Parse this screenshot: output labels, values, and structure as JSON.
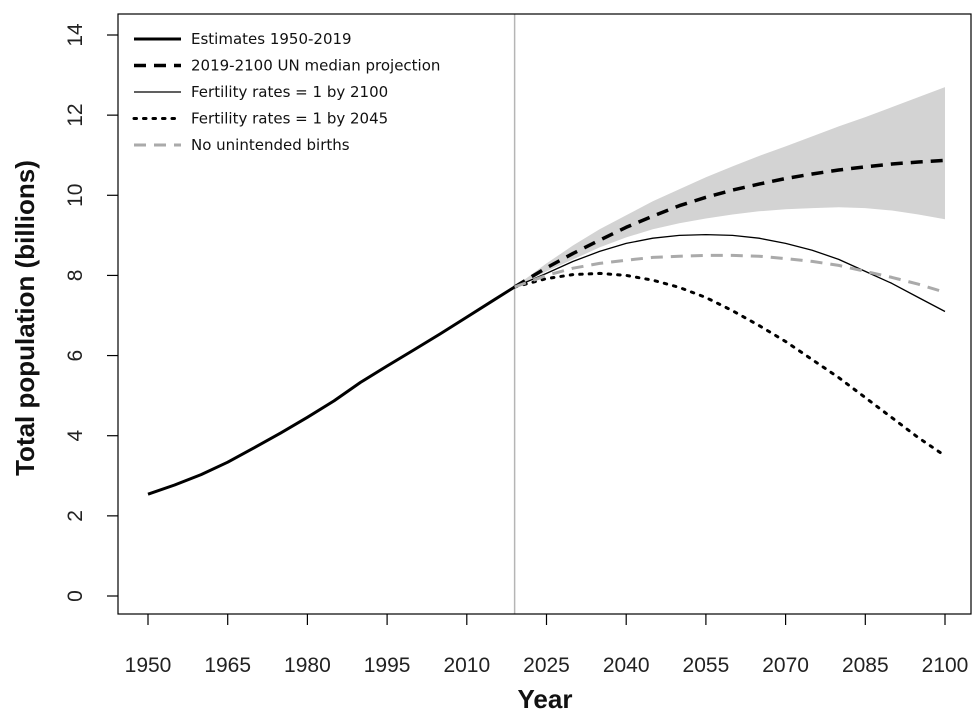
{
  "chart_data": {
    "type": "line",
    "xlabel": "Year",
    "ylabel": "Total population (billions)",
    "xlim": [
      1950,
      2100
    ],
    "ylim": [
      0,
      14
    ],
    "x_ticks": [
      1950,
      1965,
      1980,
      1995,
      2010,
      2025,
      2040,
      2055,
      2070,
      2085,
      2100
    ],
    "y_ticks": [
      0,
      2,
      4,
      6,
      8,
      10,
      12,
      14
    ],
    "divider_year": 2019,
    "grid": false,
    "legend_position": "top-left",
    "series": [
      {
        "name": "Estimates 1950-2019",
        "style": "solid-thick",
        "color": "#000000",
        "x": [
          1950,
          1955,
          1960,
          1965,
          1970,
          1975,
          1980,
          1985,
          1990,
          1995,
          2000,
          2005,
          2010,
          2015,
          2019
        ],
        "y": [
          2.54,
          2.77,
          3.03,
          3.34,
          3.7,
          4.07,
          4.46,
          4.87,
          5.33,
          5.74,
          6.14,
          6.54,
          6.96,
          7.38,
          7.71
        ]
      },
      {
        "name": "2019-2100 UN median projection",
        "style": "dashed-thick",
        "color": "#000000",
        "x": [
          2019,
          2025,
          2030,
          2035,
          2040,
          2045,
          2050,
          2055,
          2060,
          2065,
          2070,
          2075,
          2080,
          2085,
          2090,
          2095,
          2100
        ],
        "y": [
          7.71,
          8.19,
          8.55,
          8.88,
          9.2,
          9.48,
          9.74,
          9.95,
          10.13,
          10.28,
          10.42,
          10.53,
          10.63,
          10.71,
          10.78,
          10.83,
          10.87
        ]
      },
      {
        "name": "Fertility rates = 1 by 2100",
        "style": "solid-thin",
        "color": "#000000",
        "x": [
          2019,
          2025,
          2030,
          2035,
          2040,
          2045,
          2050,
          2055,
          2060,
          2065,
          2070,
          2075,
          2080,
          2085,
          2090,
          2095,
          2100
        ],
        "y": [
          7.71,
          8.05,
          8.35,
          8.6,
          8.8,
          8.93,
          9.0,
          9.02,
          9.0,
          8.93,
          8.8,
          8.63,
          8.4,
          8.1,
          7.8,
          7.45,
          7.1
        ]
      },
      {
        "name": "Fertility rates = 1 by 2045",
        "style": "dotted",
        "color": "#000000",
        "x": [
          2019,
          2025,
          2030,
          2035,
          2040,
          2045,
          2050,
          2055,
          2060,
          2065,
          2070,
          2075,
          2080,
          2085,
          2090,
          2095,
          2100
        ],
        "y": [
          7.71,
          7.92,
          8.02,
          8.05,
          8.0,
          7.88,
          7.7,
          7.45,
          7.12,
          6.75,
          6.35,
          5.9,
          5.45,
          4.95,
          4.45,
          3.95,
          3.5
        ]
      },
      {
        "name": "No unintended births",
        "style": "dashed-grey",
        "color": "#aaaaaa",
        "x": [
          2019,
          2025,
          2030,
          2035,
          2040,
          2045,
          2050,
          2055,
          2060,
          2065,
          2070,
          2075,
          2080,
          2085,
          2090,
          2095,
          2100
        ],
        "y": [
          7.71,
          8.0,
          8.18,
          8.3,
          8.38,
          8.45,
          8.48,
          8.5,
          8.5,
          8.48,
          8.42,
          8.35,
          8.25,
          8.1,
          7.95,
          7.78,
          7.58
        ]
      }
    ],
    "uncertainty_band": {
      "color": "#d3d3d3",
      "x": [
        2019,
        2025,
        2030,
        2035,
        2040,
        2045,
        2050,
        2055,
        2060,
        2065,
        2070,
        2075,
        2080,
        2085,
        2090,
        2095,
        2100
      ],
      "lower": [
        7.71,
        8.1,
        8.4,
        8.7,
        8.95,
        9.15,
        9.3,
        9.42,
        9.52,
        9.6,
        9.65,
        9.68,
        9.7,
        9.68,
        9.62,
        9.52,
        9.4
      ],
      "upper": [
        7.71,
        8.3,
        8.75,
        9.15,
        9.5,
        9.85,
        10.15,
        10.45,
        10.72,
        10.98,
        11.22,
        11.47,
        11.72,
        11.95,
        12.2,
        12.45,
        12.7
      ]
    }
  }
}
